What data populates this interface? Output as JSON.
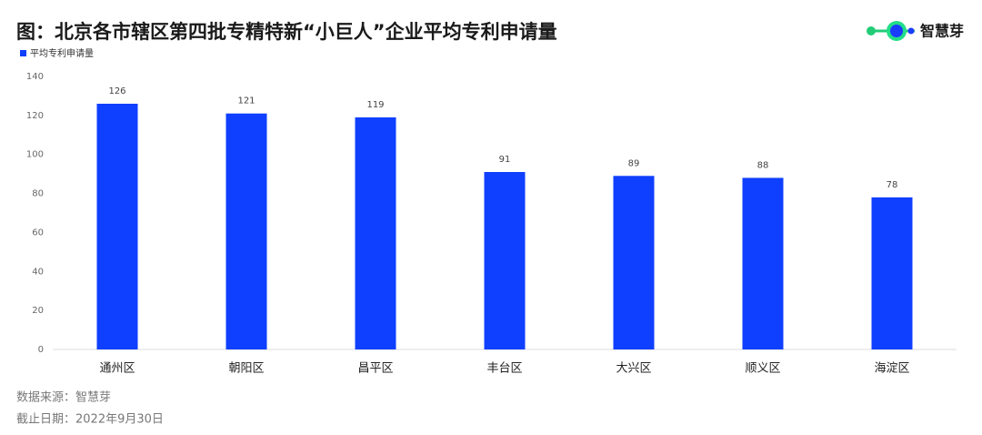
{
  "chart_data": {
    "type": "bar",
    "title": "图：北京各市辖区第四批专精特新“小巨人”企业平均专利申请量",
    "categories": [
      "通州区",
      "朝阳区",
      "昌平区",
      "丰台区",
      "大兴区",
      "顺义区",
      "海淀区"
    ],
    "series": [
      {
        "name": "平均专利申请量",
        "color": "#0f3fff",
        "values": [
          126,
          121,
          119,
          91,
          89,
          88,
          78
        ]
      }
    ],
    "ylim": [
      0,
      140
    ],
    "yticks": [
      0,
      20,
      40,
      60,
      80,
      100,
      120,
      140
    ],
    "grid": false
  },
  "logo": "智慧芽",
  "source": "数据来源：智慧芽",
  "date": "截止日期：2022年9月30日"
}
